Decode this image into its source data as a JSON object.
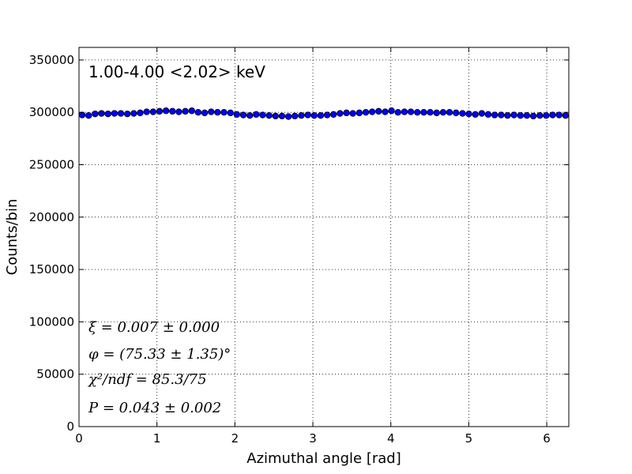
{
  "chart_data": {
    "type": "scatter",
    "title": "1.00-4.00 <2.02> keV",
    "xlabel": "Azimuthal angle [rad]",
    "ylabel": "Counts/bin",
    "xlim": [
      0,
      6.283
    ],
    "ylim": [
      0,
      362000
    ],
    "xticks": [
      "0",
      "1",
      "2",
      "3",
      "4",
      "5",
      "6"
    ],
    "yticks": [
      "0",
      "50000",
      "100000",
      "150000",
      "200000",
      "250000",
      "300000",
      "350000"
    ],
    "grid": true,
    "marker_color": "#0000ff",
    "annotations": [
      "ξ = 0.007 ± 0.000",
      "φ = (75.33 ± 1.35)°",
      "χ²/ndf = 85.3/75",
      "P = 0.043 ± 0.002"
    ],
    "series": [
      {
        "x": [
          0.041,
          0.124,
          0.207,
          0.289,
          0.372,
          0.455,
          0.537,
          0.62,
          0.703,
          0.785,
          0.868,
          0.951,
          1.033,
          1.116,
          1.199,
          1.281,
          1.364,
          1.447,
          1.529,
          1.612,
          1.695,
          1.777,
          1.86,
          1.943,
          2.025,
          2.108,
          2.191,
          2.273,
          2.356,
          2.439,
          2.521,
          2.604,
          2.687,
          2.769,
          2.852,
          2.935,
          3.017,
          3.1,
          3.183,
          3.265,
          3.348,
          3.431,
          3.513,
          3.596,
          3.679,
          3.761,
          3.844,
          3.927,
          4.009,
          4.092,
          4.175,
          4.257,
          4.34,
          4.423,
          4.505,
          4.588,
          4.671,
          4.753,
          4.836,
          4.919,
          5.001,
          5.084,
          5.167,
          5.249,
          5.332,
          5.415,
          5.497,
          5.58,
          5.663,
          5.745,
          5.828,
          5.911,
          5.993,
          6.076,
          6.159,
          6.241
        ],
        "y": [
          297500,
          297000,
          298500,
          299000,
          298500,
          299000,
          299000,
          298500,
          299000,
          299500,
          300500,
          300500,
          301000,
          301500,
          301000,
          300500,
          301000,
          301500,
          300000,
          299500,
          300500,
          300000,
          300000,
          299500,
          298000,
          297500,
          297000,
          298000,
          297500,
          297000,
          296500,
          296500,
          296000,
          296500,
          297000,
          297500,
          297000,
          297000,
          297500,
          298000,
          299000,
          299500,
          299000,
          299500,
          300000,
          300500,
          301000,
          300500,
          301500,
          300000,
          300500,
          300500,
          300000,
          300000,
          300000,
          299500,
          300000,
          300000,
          299500,
          299000,
          298500,
          298000,
          299000,
          298000,
          297500,
          297500,
          297000,
          297500,
          297000,
          297000,
          296500,
          297000,
          297000,
          297500,
          297500,
          297000
        ]
      }
    ]
  }
}
